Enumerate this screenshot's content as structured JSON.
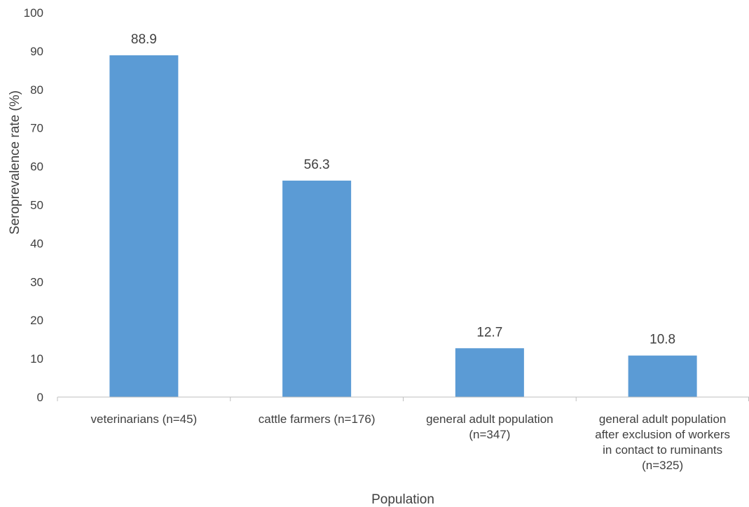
{
  "chart_data": {
    "type": "bar",
    "categories": [
      [
        "veterinarians (n=45)"
      ],
      [
        "cattle farmers (n=176)"
      ],
      [
        "general adult population",
        "(n=347)"
      ],
      [
        "general adult population",
        "after exclusion of workers",
        "in contact to ruminants",
        "(n=325)"
      ]
    ],
    "values": [
      88.9,
      56.3,
      12.7,
      10.8
    ],
    "data_labels": [
      "88.9",
      "56.3",
      "12.7",
      "10.8"
    ],
    "xlabel": "Population",
    "ylabel": "Seroprevalence rate (%)",
    "ylim": [
      0,
      100
    ],
    "yticks": [
      0,
      10,
      20,
      30,
      40,
      50,
      60,
      70,
      80,
      90,
      100
    ],
    "grid": false,
    "legend": "none",
    "colors": {
      "bar": "#5b9bd5",
      "axis": "#bfbfbf",
      "text": "#404040"
    }
  }
}
